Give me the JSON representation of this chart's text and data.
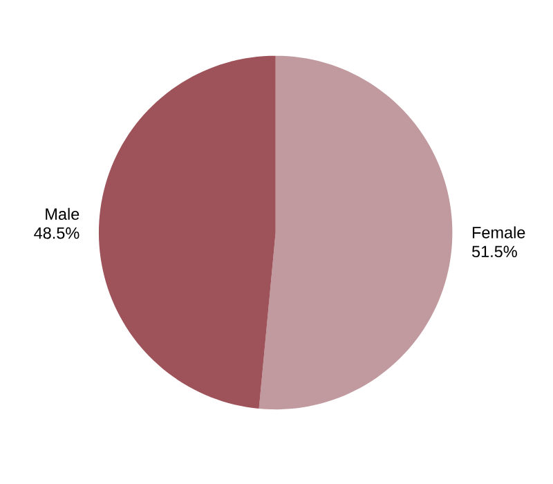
{
  "chart_data": {
    "type": "pie",
    "categories": [
      "Female",
      "Male"
    ],
    "values": [
      51.5,
      48.5
    ],
    "colors": [
      "#c09a9e",
      "#9e5259"
    ],
    "value_labels": [
      "51.5%",
      "48.5%"
    ]
  }
}
